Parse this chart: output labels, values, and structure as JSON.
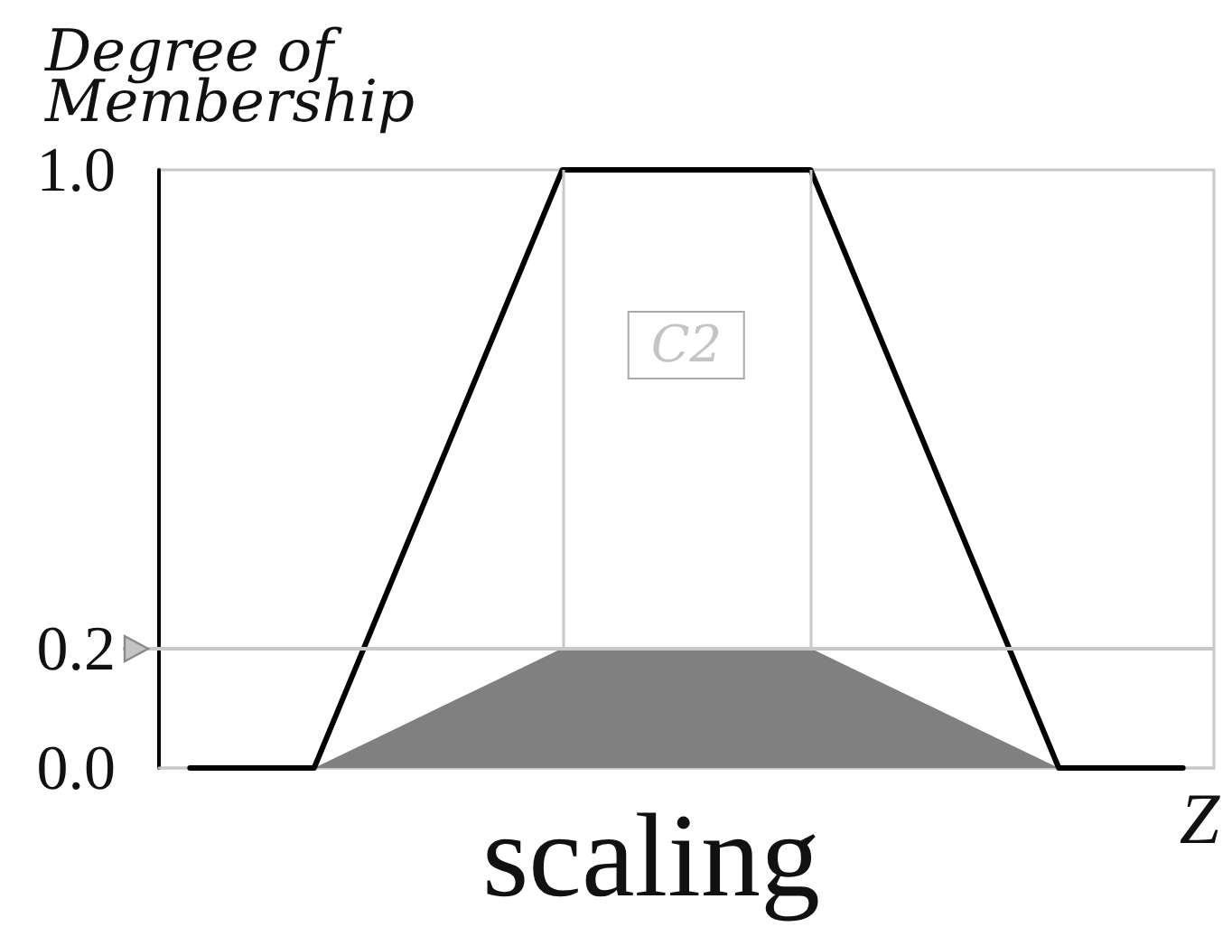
{
  "chart_data": {
    "type": "line",
    "title": "scaling",
    "xlabel": "Z",
    "ylabel": "Degree of Membership",
    "annotations": [
      "C2"
    ],
    "categories": [
      null,
      null,
      null,
      null,
      null,
      null,
      null,
      null,
      null,
      null,
      null,
      null,
      null,
      null,
      null,
      null,
      null
    ],
    "series": [
      {
        "type": "area",
        "color": "#808080",
        "values": [
          null,
          null,
          0,
          0.05,
          0.1,
          0.15,
          0.2,
          0.2,
          0.2,
          0.2,
          0.2,
          0.15,
          0.1,
          0.05,
          0,
          null,
          null
        ]
      },
      {
        "color": "#000000",
        "values": [
          0,
          0,
          0,
          0.25,
          0.5,
          0.75,
          1,
          1,
          1,
          1,
          1,
          0.75,
          0.5,
          0.25,
          0,
          0,
          0
        ]
      }
    ],
    "ylim": [
      0,
      1
    ],
    "yticks": [
      {
        "value": 0,
        "label": "0.0"
      },
      {
        "value": 0.2,
        "label": "0.2"
      },
      {
        "value": 1,
        "label": "1.0"
      }
    ],
    "ref_lines": [
      {
        "axis": "y",
        "value": 0.2,
        "color": "#c8c8c8"
      }
    ],
    "grid": false,
    "tick_labels": "y",
    "marker": "none",
    "line_style": "solid"
  }
}
